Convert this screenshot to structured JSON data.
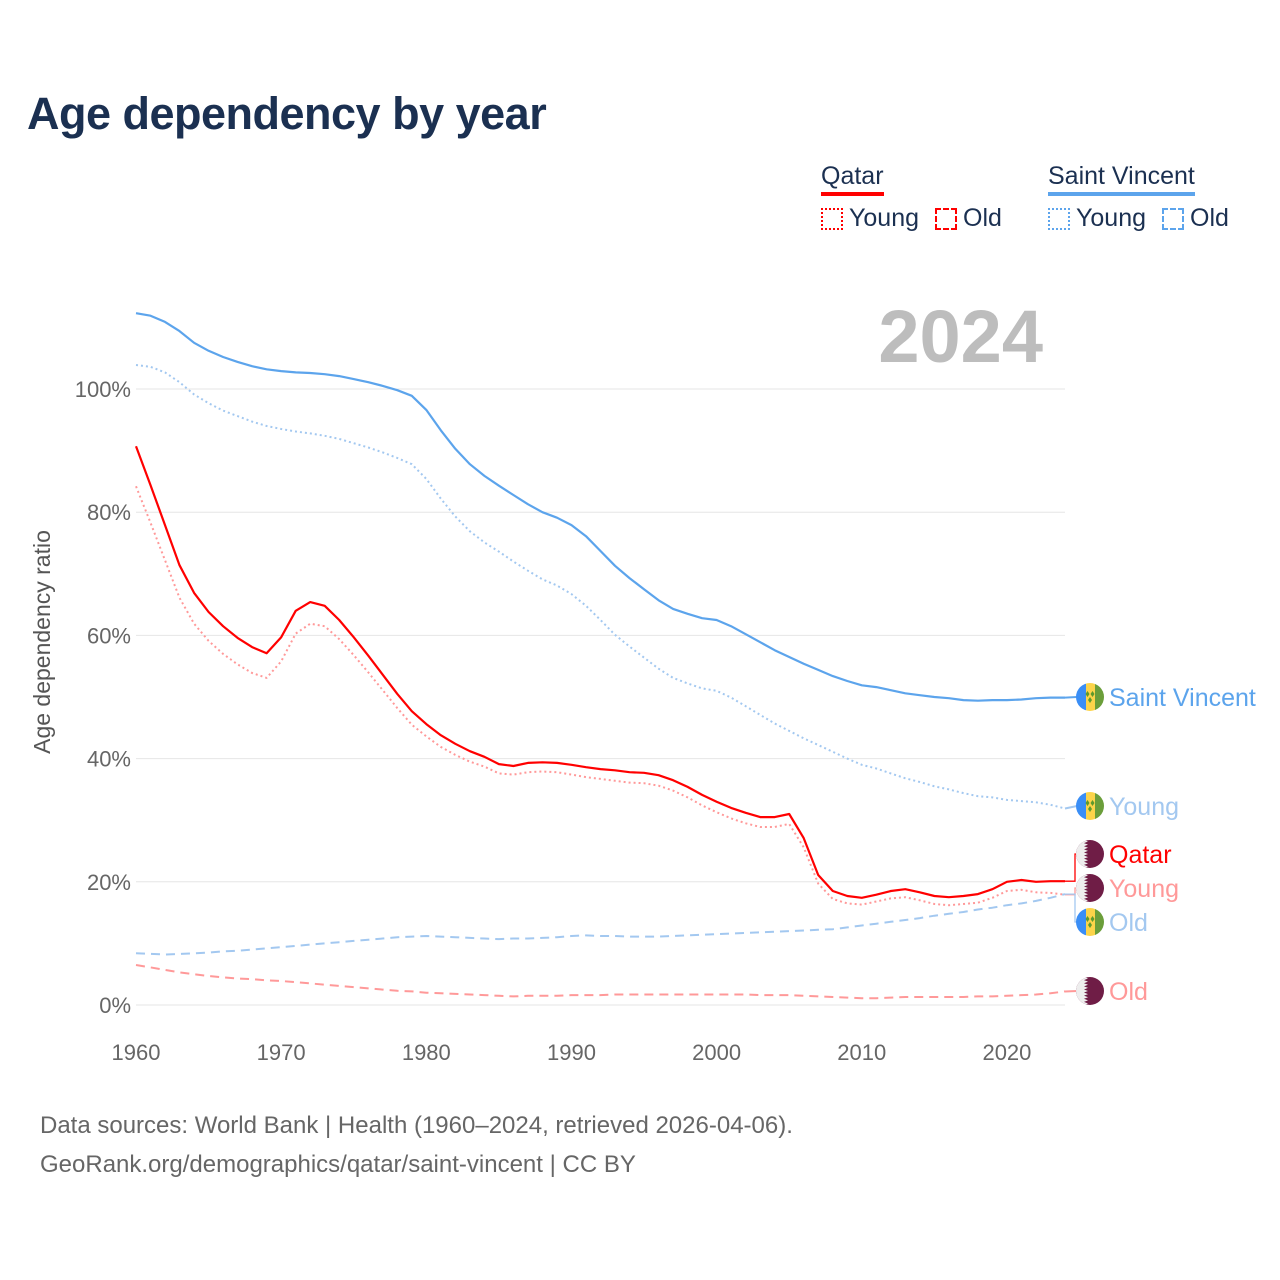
{
  "title": "Age dependency by year",
  "legend": {
    "groups": [
      {
        "name": "Qatar",
        "color": "#ff0000",
        "items": [
          "Young",
          "Old"
        ]
      },
      {
        "name": "Saint Vincent",
        "color": "#5ca4ec",
        "items": [
          "Young",
          "Old"
        ]
      }
    ]
  },
  "year_watermark": "2024",
  "footer": {
    "line1": "Data sources: World Bank | Health (1960–2024, retrieved 2026-04-06).",
    "line2": "GeoRank.org/demographics/qatar/saint-vincent | CC BY"
  },
  "chart_data": {
    "type": "line",
    "title": "Age dependency by year",
    "xlabel": "",
    "ylabel": "Age dependency ratio",
    "xlim": [
      1960,
      2024
    ],
    "ylim": [
      0,
      115
    ],
    "x_ticks": [
      "1960",
      "1970",
      "1980",
      "1990",
      "2000",
      "2010",
      "2020"
    ],
    "y_ticks": [
      "0%",
      "20%",
      "40%",
      "60%",
      "80%",
      "100%"
    ],
    "grid": true,
    "x_start": 1960,
    "series": [
      {
        "name": "Saint Vincent",
        "end_label": "Saint Vincent",
        "country": "Saint Vincent",
        "style": "solid",
        "color": "#5ca4ec",
        "values": [
          112.3,
          111.9,
          110.9,
          109.4,
          107.5,
          106.2,
          105.2,
          104.4,
          103.7,
          103.2,
          102.9,
          102.7,
          102.6,
          102.4,
          102.1,
          101.6,
          101.1,
          100.5,
          99.8,
          98.9,
          96.6,
          93.3,
          90.3,
          87.8,
          85.9,
          84.3,
          82.8,
          81.3,
          80.0,
          79.1,
          77.9,
          76.1,
          73.7,
          71.3,
          69.3,
          67.5,
          65.7,
          64.3,
          63.5,
          62.8,
          62.5,
          61.5,
          60.2,
          58.9,
          57.6,
          56.5,
          55.4,
          54.4,
          53.4,
          52.6,
          51.9,
          51.6,
          51.1,
          50.6,
          50.3,
          50.0,
          49.8,
          49.5,
          49.4,
          49.5,
          49.5,
          49.6,
          49.8,
          49.9,
          49.9
        ]
      },
      {
        "name": "Saint Vincent Young",
        "end_label": "Young",
        "country": "Saint Vincent",
        "style": "dotted",
        "color": "#a3c8f0",
        "values": [
          103.9,
          103.6,
          102.7,
          101.1,
          99.1,
          97.7,
          96.5,
          95.6,
          94.7,
          94.0,
          93.5,
          93.1,
          92.8,
          92.4,
          91.9,
          91.2,
          90.5,
          89.7,
          88.8,
          87.8,
          85.4,
          82.2,
          79.3,
          76.9,
          75.1,
          73.6,
          72.0,
          70.5,
          69.1,
          68.1,
          66.7,
          64.8,
          62.5,
          60.1,
          58.2,
          56.4,
          54.6,
          53.1,
          52.2,
          51.4,
          51.0,
          49.9,
          48.5,
          47.1,
          45.7,
          44.5,
          43.3,
          42.2,
          41.1,
          40.0,
          39.0,
          38.4,
          37.6,
          36.8,
          36.2,
          35.5,
          35.0,
          34.4,
          33.9,
          33.7,
          33.3,
          33.1,
          32.9,
          32.5,
          31.9
        ]
      },
      {
        "name": "Qatar",
        "end_label": "Qatar",
        "country": "Qatar",
        "style": "solid",
        "color": "#ff0000",
        "values": [
          90.7,
          84.4,
          77.9,
          71.4,
          66.9,
          63.8,
          61.5,
          59.6,
          58.1,
          57.1,
          59.7,
          64.0,
          65.4,
          64.8,
          62.5,
          59.7,
          56.7,
          53.6,
          50.5,
          47.7,
          45.6,
          43.8,
          42.4,
          41.2,
          40.3,
          39.1,
          38.8,
          39.3,
          39.4,
          39.3,
          39.0,
          38.6,
          38.3,
          38.1,
          37.8,
          37.7,
          37.3,
          36.5,
          35.4,
          34.1,
          33.0,
          32.0,
          31.2,
          30.5,
          30.5,
          31.0,
          27.1,
          21.1,
          18.5,
          17.7,
          17.4,
          17.9,
          18.5,
          18.8,
          18.3,
          17.7,
          17.5,
          17.7,
          18.0,
          18.8,
          20.0,
          20.3,
          20.0,
          20.1,
          20.1
        ]
      },
      {
        "name": "Qatar Young",
        "end_label": "Young",
        "country": "Qatar",
        "style": "dotted",
        "color": "#ff9999",
        "values": [
          84.2,
          78.3,
          72.2,
          66.1,
          61.9,
          59.1,
          57.0,
          55.3,
          53.9,
          53.1,
          55.8,
          60.3,
          61.9,
          61.5,
          59.4,
          56.8,
          54.0,
          51.1,
          48.2,
          45.5,
          43.6,
          41.9,
          40.6,
          39.5,
          38.7,
          37.6,
          37.4,
          37.8,
          37.9,
          37.8,
          37.4,
          37.0,
          36.7,
          36.4,
          36.1,
          36.0,
          35.6,
          34.8,
          33.7,
          32.4,
          31.3,
          30.3,
          29.5,
          28.9,
          28.9,
          29.4,
          25.6,
          19.7,
          17.2,
          16.5,
          16.3,
          16.8,
          17.3,
          17.5,
          17.0,
          16.4,
          16.2,
          16.4,
          16.6,
          17.4,
          18.5,
          18.7,
          18.3,
          18.2,
          17.9
        ]
      },
      {
        "name": "Saint Vincent Old",
        "end_label": "Old",
        "country": "Saint Vincent",
        "style": "dashed",
        "color": "#a3c8f0",
        "values": [
          8.4,
          8.3,
          8.2,
          8.3,
          8.4,
          8.5,
          8.7,
          8.8,
          9.0,
          9.2,
          9.4,
          9.6,
          9.8,
          10.0,
          10.2,
          10.4,
          10.6,
          10.8,
          11.0,
          11.1,
          11.2,
          11.1,
          11.0,
          10.9,
          10.8,
          10.7,
          10.8,
          10.8,
          10.9,
          11.0,
          11.2,
          11.3,
          11.2,
          11.2,
          11.1,
          11.1,
          11.1,
          11.2,
          11.3,
          11.4,
          11.5,
          11.6,
          11.7,
          11.8,
          11.9,
          12.0,
          12.1,
          12.2,
          12.3,
          12.6,
          12.9,
          13.2,
          13.5,
          13.8,
          14.1,
          14.5,
          14.8,
          15.1,
          15.5,
          15.8,
          16.2,
          16.5,
          16.9,
          17.4,
          18.0
        ]
      },
      {
        "name": "Qatar Old",
        "end_label": "Old",
        "country": "Qatar",
        "style": "dashed",
        "color": "#ff9999",
        "values": [
          6.5,
          6.1,
          5.7,
          5.3,
          5.0,
          4.7,
          4.5,
          4.3,
          4.2,
          4.0,
          3.9,
          3.7,
          3.5,
          3.3,
          3.1,
          2.9,
          2.7,
          2.5,
          2.3,
          2.2,
          2.0,
          1.9,
          1.8,
          1.7,
          1.6,
          1.5,
          1.4,
          1.5,
          1.5,
          1.5,
          1.6,
          1.6,
          1.6,
          1.7,
          1.7,
          1.7,
          1.7,
          1.7,
          1.7,
          1.7,
          1.7,
          1.7,
          1.7,
          1.6,
          1.6,
          1.6,
          1.5,
          1.4,
          1.3,
          1.2,
          1.1,
          1.1,
          1.2,
          1.3,
          1.3,
          1.3,
          1.3,
          1.3,
          1.4,
          1.4,
          1.5,
          1.6,
          1.7,
          1.9,
          2.2
        ]
      }
    ]
  }
}
